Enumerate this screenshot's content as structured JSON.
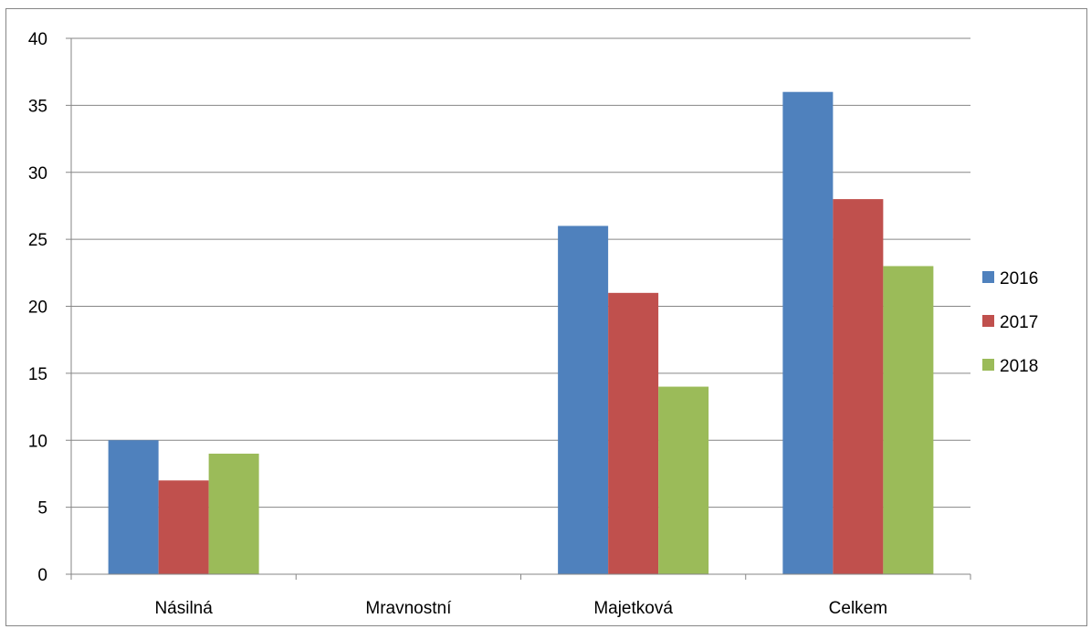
{
  "chart_data": {
    "type": "bar",
    "title": "",
    "xlabel": "",
    "ylabel": "",
    "categories": [
      "Násilná",
      "Mravnostní",
      "Majetková",
      "Celkem"
    ],
    "series": [
      {
        "name": "2016",
        "color": "#4F81BD",
        "values": [
          10,
          0,
          26,
          36
        ]
      },
      {
        "name": "2017",
        "color": "#C0504D",
        "values": [
          7,
          0,
          21,
          28
        ]
      },
      {
        "name": "2018",
        "color": "#9BBB59",
        "values": [
          9,
          0,
          14,
          23
        ]
      }
    ],
    "ylim": [
      0,
      40
    ],
    "yticks": [
      0,
      5,
      10,
      15,
      20,
      25,
      30,
      35,
      40
    ],
    "grid": true,
    "legend": "right"
  }
}
